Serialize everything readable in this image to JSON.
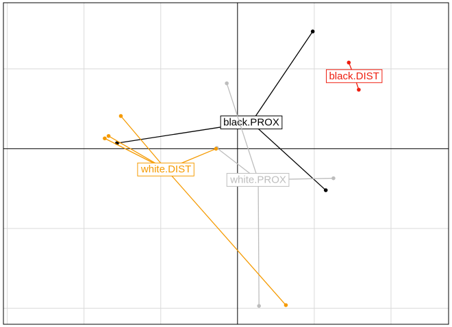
{
  "chart_data": {
    "type": "scatter",
    "title": "",
    "xlabel": "",
    "ylabel": "",
    "grid": true,
    "xlim": [
      -3.05,
      2.75
    ],
    "ylim": [
      -2.2,
      1.83
    ],
    "axes_at_zero": true,
    "groups": [
      {
        "name": "black.PROX",
        "color": "#000000",
        "label": {
          "text": "black.PROX",
          "x": 0.18,
          "y": 0.33
        },
        "points": [
          {
            "x": 0.98,
            "y": 1.47
          },
          {
            "x": -1.57,
            "y": 0.07
          },
          {
            "x": 1.15,
            "y": -0.52
          }
        ]
      },
      {
        "name": "black.DIST",
        "color": "#ee1c0e",
        "label": {
          "text": "black.DIST",
          "x": 1.52,
          "y": 0.91
        },
        "points": [
          {
            "x": 1.45,
            "y": 1.08
          },
          {
            "x": 1.58,
            "y": 0.74
          }
        ]
      },
      {
        "name": "white.PROX",
        "color": "#bdbdbd",
        "label": {
          "text": "white.PROX",
          "x": 0.27,
          "y": -0.39
        },
        "points": [
          {
            "x": -0.14,
            "y": 0.82
          },
          {
            "x": 0.28,
            "y": -1.97
          },
          {
            "x": 1.25,
            "y": -0.37
          },
          {
            "x": -0.27,
            "y": 0.01
          }
        ]
      },
      {
        "name": "white.DIST",
        "color": "#f59a00",
        "label": {
          "text": "white.DIST",
          "x": -0.93,
          "y": -0.26
        },
        "points": [
          {
            "x": -1.52,
            "y": 0.41
          },
          {
            "x": -1.68,
            "y": 0.16
          },
          {
            "x": -1.73,
            "y": 0.13
          },
          {
            "x": -0.28,
            "y": 0.0
          },
          {
            "x": 0.63,
            "y": -1.96
          }
        ]
      }
    ]
  }
}
